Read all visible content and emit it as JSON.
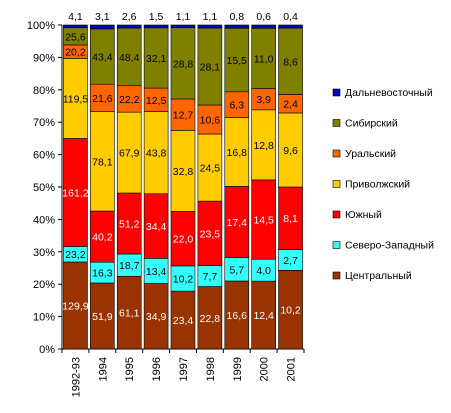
{
  "chart_data": {
    "type": "bar",
    "stacked": "percent",
    "categories": [
      "1992-93",
      "1994",
      "1995",
      "1996",
      "1997",
      "1998",
      "1999",
      "2000",
      "2001"
    ],
    "y_ticks": [
      "0%",
      "10%",
      "20%",
      "30%",
      "40%",
      "50%",
      "60%",
      "70%",
      "80%",
      "90%",
      "100%"
    ],
    "ylim": [
      0,
      100
    ],
    "grid": false,
    "legend_position": "right",
    "series": [
      {
        "name": "Центральный",
        "color": "#993300",
        "values": [
          129.9,
          51.9,
          61.1,
          34.9,
          23.4,
          22.8,
          16.6,
          12.4,
          10.2
        ]
      },
      {
        "name": "Северо-Западный",
        "color": "#33FFFF",
        "values": [
          23.2,
          16.3,
          18.7,
          13.4,
          10.2,
          7.7,
          5.7,
          4.0,
          2.7
        ]
      },
      {
        "name": "Южный",
        "color": "#FF0000",
        "values": [
          161.2,
          40.2,
          51.2,
          34.4,
          22.0,
          23.5,
          17.4,
          14.5,
          8.1
        ]
      },
      {
        "name": "Приволжский",
        "color": "#FFCC00",
        "values": [
          119.5,
          78.1,
          67.9,
          43.8,
          32.8,
          24.5,
          16.8,
          12.8,
          9.6
        ]
      },
      {
        "name": "Уральский",
        "color": "#FF6600",
        "values": [
          20.2,
          21.6,
          22.2,
          12.5,
          12.7,
          10.6,
          6.3,
          3.9,
          2.4
        ]
      },
      {
        "name": "Сибирский",
        "color": "#808000",
        "values": [
          25.6,
          43.4,
          48.4,
          32.1,
          28.8,
          28.1,
          15.5,
          11.0,
          8.6
        ]
      },
      {
        "name": "Дальневосточный",
        "color": "#0000CC",
        "values": [
          4.1,
          3.1,
          2.6,
          1.5,
          1.1,
          1.1,
          0.8,
          0.6,
          0.4
        ]
      }
    ],
    "value_labels": [
      [
        "129,9",
        "51,9",
        "61,1",
        "34,9",
        "23,4",
        "22,8",
        "16,6",
        "12,4",
        "10,2"
      ],
      [
        "23,2",
        "16,3",
        "18,7",
        "13,4",
        "10,2",
        "7,7",
        "5,7",
        "4,0",
        "2,7"
      ],
      [
        "161,2",
        "40,2",
        "51,2",
        "34,4",
        "22,0",
        "23,5",
        "17,4",
        "14,5",
        "8,1"
      ],
      [
        "119,5",
        "78,1",
        "67,9",
        "43,8",
        "32,8",
        "24,5",
        "16,8",
        "12,8",
        "9,6"
      ],
      [
        "20,2",
        "21,6",
        "22,2",
        "12,5",
        "12,7",
        "10,6",
        "6,3",
        "3,9",
        "2,4"
      ],
      [
        "25,6",
        "43,4",
        "48,4",
        "32,1",
        "28,8",
        "28,1",
        "15,5",
        "11,0",
        "8,6"
      ],
      [
        "4,1",
        "3,1",
        "2,6",
        "1,5",
        "1,1",
        "1,1",
        "0,8",
        "0,6",
        "0,4"
      ]
    ],
    "legend_order": [
      "Дальневосточный",
      "Сибирский",
      "Уральский",
      "Приволжский",
      "Южный",
      "Северо-Западный",
      "Центральный"
    ]
  }
}
